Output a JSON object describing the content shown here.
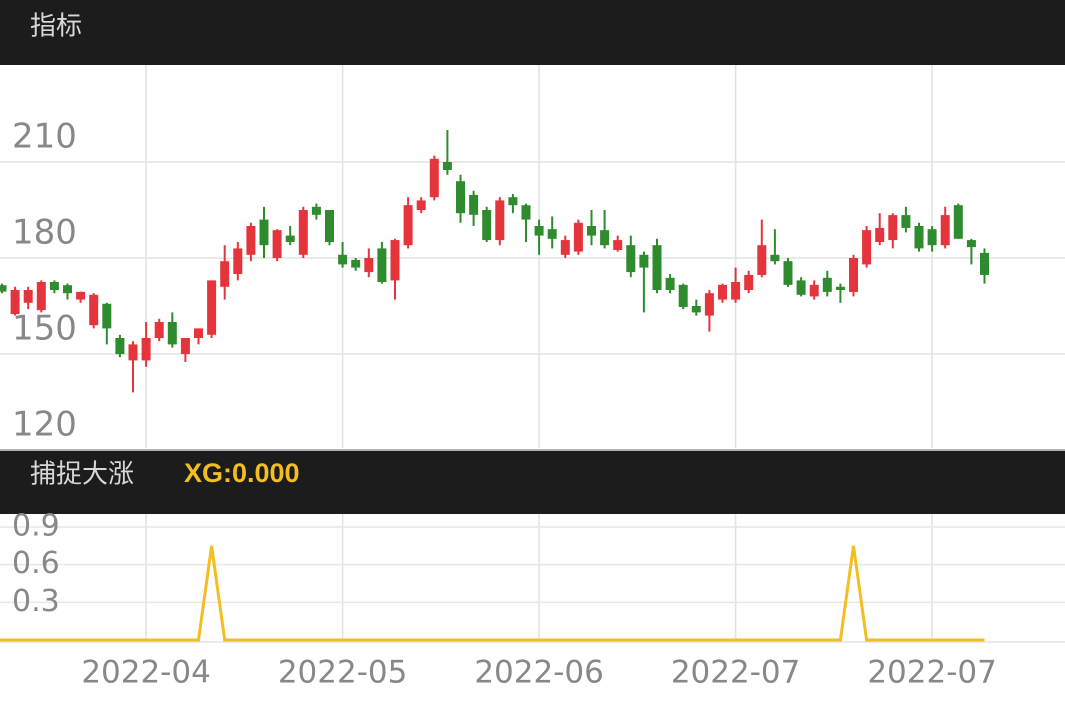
{
  "chart_data": [
    {
      "type": "candlestick",
      "title": "指标",
      "open": [
        171.5,
        162.5,
        166,
        163.7,
        172.5,
        171.5,
        167,
        159,
        165.7,
        155,
        148,
        148,
        155,
        160,
        150,
        155,
        156,
        171,
        175,
        181,
        192,
        180,
        187,
        181,
        196,
        195,
        181,
        179.4,
        175.6,
        183,
        173,
        184,
        195,
        199,
        210,
        204,
        199.7,
        195,
        185.6,
        199,
        196.5,
        190,
        189,
        181,
        182,
        190,
        188.7,
        182.5,
        184,
        181,
        184,
        173.8,
        171.6,
        165,
        162,
        167,
        167,
        170,
        174.7,
        181,
        179,
        173,
        168,
        173.8,
        171,
        169.4,
        178,
        185,
        185.6,
        193.4,
        190,
        189,
        184,
        196.5,
        185.6,
        181.6
      ],
      "high": [
        172,
        171,
        171,
        173,
        173,
        172,
        169.5,
        169,
        166,
        156,
        154,
        160,
        161,
        163,
        155,
        158,
        173,
        184,
        185,
        191,
        196,
        189,
        190,
        196,
        197,
        195,
        185,
        180,
        183,
        185,
        186,
        199,
        199,
        212,
        220,
        206,
        201,
        196,
        199,
        200,
        197,
        192,
        193,
        187,
        192,
        195,
        195,
        187,
        187,
        182,
        186,
        175,
        172,
        167,
        170,
        172,
        177,
        176,
        192,
        189,
        180,
        174,
        173,
        176,
        172,
        181,
        190,
        194,
        194,
        196,
        191,
        190,
        196,
        197,
        186,
        183
      ],
      "low": [
        169,
        162,
        164,
        163,
        169,
        167,
        166,
        158,
        153,
        149,
        138,
        146,
        154,
        152,
        147.5,
        153,
        155,
        167,
        173,
        179,
        180,
        179,
        184,
        180,
        192,
        184,
        177,
        176,
        174,
        172,
        167,
        183,
        194,
        198,
        206,
        191,
        190,
        185,
        184,
        194,
        185,
        181,
        183,
        180,
        181,
        184,
        183,
        182,
        174,
        163,
        169,
        169,
        164,
        162,
        157,
        166,
        166,
        169,
        174,
        178,
        171,
        168,
        167,
        168,
        166,
        168,
        177,
        184,
        183,
        188,
        182,
        182,
        183,
        186,
        178,
        172
      ],
      "close": [
        169.5,
        170,
        170,
        172.5,
        170,
        169,
        169.4,
        168.5,
        158,
        150,
        153,
        155,
        160,
        153,
        155,
        158,
        173,
        179,
        183,
        190,
        184,
        188.7,
        185,
        195,
        193.5,
        185,
        178,
        177,
        180,
        172.5,
        185.6,
        196.5,
        198,
        211,
        207.5,
        194,
        193.5,
        185.6,
        198,
        196.5,
        192,
        187,
        186,
        185.6,
        191,
        187,
        184,
        185.6,
        175.6,
        177,
        170,
        170,
        164.7,
        163,
        169,
        171.6,
        172.5,
        174.7,
        184,
        179,
        171.6,
        168.5,
        171.6,
        169.4,
        170,
        180,
        188.7,
        189.4,
        193.4,
        189.4,
        183,
        184,
        193.4,
        186,
        183.4,
        174.7
      ],
      "up_color": "#e5343b",
      "down_color": "#2e8b2e",
      "ylim": [
        120,
        240
      ],
      "yticks": [
        120,
        150,
        180,
        210
      ],
      "grid": true
    },
    {
      "type": "line",
      "title": "捕捉大涨",
      "indicator_label": "XG:0.000",
      "categories": [
        null,
        null,
        null,
        null,
        null,
        null,
        null,
        null,
        null,
        null,
        null,
        "2022-04",
        null,
        null,
        null,
        null,
        null,
        null,
        null,
        null,
        null,
        null,
        null,
        null,
        null,
        null,
        "2022-05",
        null,
        null,
        null,
        null,
        null,
        null,
        null,
        null,
        null,
        null,
        null,
        null,
        null,
        null,
        "2022-06",
        null,
        null,
        null,
        null,
        null,
        null,
        null,
        null,
        null,
        null,
        null,
        null,
        null,
        null,
        "2022-07",
        null,
        null,
        null,
        null,
        null,
        null,
        null,
        null,
        null,
        null,
        null,
        null,
        null,
        null,
        "2022-07",
        null,
        null,
        null,
        null
      ],
      "series": [
        {
          "name": "XG",
          "color": "#f2be22",
          "values": [
            0,
            0,
            0,
            0,
            0,
            0,
            0,
            0,
            0,
            0,
            0,
            0,
            0,
            0,
            0,
            0,
            0.75,
            0,
            0,
            0,
            0,
            0,
            0,
            0,
            0,
            0,
            0,
            0,
            0,
            0,
            0,
            0,
            0,
            0,
            0,
            0,
            0,
            0,
            0,
            0,
            0,
            0,
            0,
            0,
            0,
            0,
            0,
            0,
            0,
            0,
            0,
            0,
            0,
            0,
            0,
            0,
            0,
            0,
            0,
            0,
            0,
            0,
            0,
            0,
            0,
            0.75,
            0,
            0,
            0,
            0,
            0,
            0,
            0,
            0,
            0,
            0
          ]
        }
      ],
      "ylim": [
        0,
        0.9
      ],
      "yticks": [
        0.3,
        0.6,
        0.9
      ],
      "grid": true
    }
  ]
}
